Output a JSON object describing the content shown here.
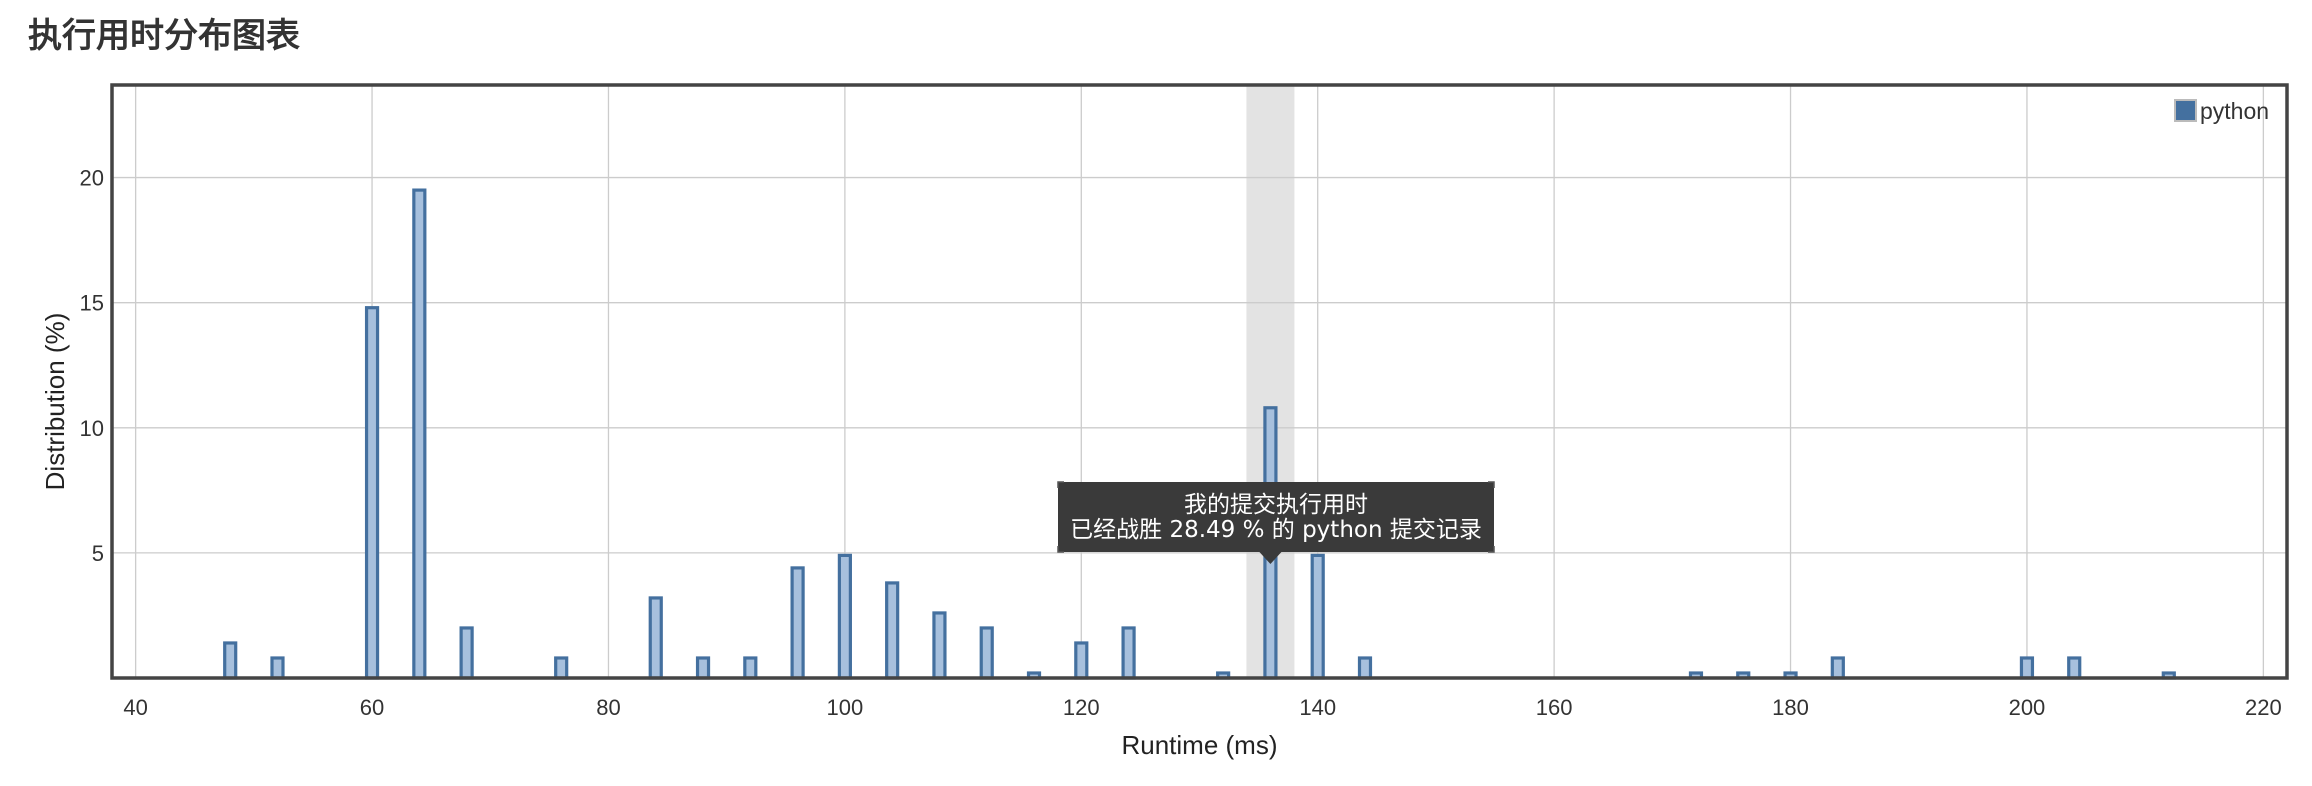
{
  "page_title": "执行用时分布图表",
  "colors": {
    "bar_fill": "#a7c0dd",
    "bar_stroke": "#44709f",
    "legend_swatch": "#44709f",
    "grid": "#cccccc",
    "frame": "#444444",
    "highlight_band": "#e3e3e3",
    "tooltip_bg": "#3a3a3a",
    "tooltip_text": "#ffffff"
  },
  "tooltip": {
    "line1": "我的提交执行用时",
    "line2": "已经战胜 28.49 % 的 python 提交记录"
  },
  "chart_data": {
    "type": "bar",
    "title": "",
    "xlabel": "Runtime (ms)",
    "ylabel": "Distribution (%)",
    "xlim": [
      38,
      222
    ],
    "ylim": [
      0,
      23.7
    ],
    "x_ticks": [
      40,
      60,
      80,
      100,
      120,
      140,
      160,
      180,
      200,
      220
    ],
    "y_ticks": [
      5,
      10,
      15,
      20
    ],
    "grid": true,
    "legend_position": "top-right",
    "highlight_x": 136,
    "series": [
      {
        "name": "python",
        "x": [
          48,
          52,
          60,
          64,
          68,
          76,
          84,
          88,
          92,
          96,
          100,
          104,
          108,
          112,
          116,
          120,
          124,
          132,
          136,
          140,
          144,
          172,
          176,
          180,
          184,
          200,
          204,
          212
        ],
        "values": [
          1.4,
          0.8,
          14.8,
          19.5,
          2.0,
          0.8,
          3.2,
          0.8,
          0.8,
          4.4,
          4.9,
          3.8,
          2.6,
          2.0,
          0.2,
          1.4,
          2.0,
          0.2,
          10.8,
          4.9,
          0.8,
          0.2,
          0.2,
          0.2,
          0.8,
          0.8,
          0.8,
          0.2
        ]
      }
    ]
  }
}
